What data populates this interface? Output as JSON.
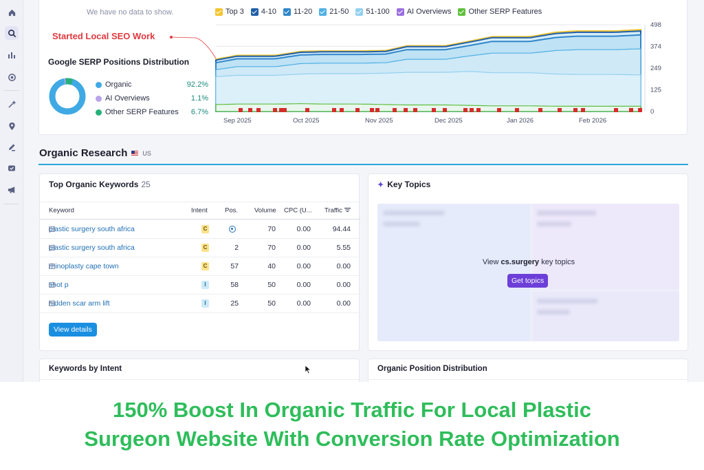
{
  "sidebar": {
    "icons": [
      "home-icon",
      "seo-icon",
      "bar-chart-icon",
      "target-icon",
      "sparkle-icon",
      "location-pin-icon",
      "edit-icon",
      "shield-icon",
      "megaphone-icon"
    ]
  },
  "top_panel": {
    "no_data_text": "We have no data to show.",
    "legend": [
      {
        "label": "Top 3",
        "color": "#f3c531"
      },
      {
        "label": "4-10",
        "color": "#1f5fa8"
      },
      {
        "label": "11-20",
        "color": "#2f86c9"
      },
      {
        "label": "21-50",
        "color": "#4fb0e3"
      },
      {
        "label": "51-100",
        "color": "#93d0f0"
      },
      {
        "label": "AI Overviews",
        "color": "#9b6fe0"
      },
      {
        "label": "Other SERP Features",
        "color": "#5fbf3c"
      }
    ],
    "annotation": "Started  Local SEO Work",
    "serp_title": "Google SERP Positions Distribution",
    "serp_items": [
      {
        "label": "Organic",
        "value": "92.2%",
        "color": "#3fa9e4"
      },
      {
        "label": "AI Overviews",
        "value": "1.1%",
        "color": "#b9a4ea"
      },
      {
        "label": "Other SERP Features",
        "value": "6.7%",
        "color": "#27b07a"
      }
    ]
  },
  "chart_data": {
    "type": "area",
    "x": [
      "Sep 2025",
      "Oct 2025",
      "Nov 2025",
      "Dec 2025",
      "Jan 2026",
      "Feb 2026"
    ],
    "yticks": [
      0,
      125,
      249,
      374,
      498
    ],
    "ylim": [
      0,
      498
    ],
    "series": [
      {
        "name": "Top 3",
        "values": [
          300,
          345,
          350,
          405,
          455,
          470
        ]
      },
      {
        "name": "4-10",
        "values": [
          295,
          340,
          345,
          400,
          448,
          462
        ]
      },
      {
        "name": "11-20",
        "values": [
          280,
          325,
          330,
          380,
          425,
          440
        ]
      },
      {
        "name": "21-50",
        "values": [
          240,
          275,
          280,
          320,
          350,
          360
        ]
      },
      {
        "name": "51-100",
        "values": [
          200,
          215,
          220,
          230,
          215,
          210
        ]
      },
      {
        "name": "Other SERP Features",
        "values": [
          40,
          45,
          40,
          35,
          30,
          30
        ]
      }
    ],
    "grid": true
  },
  "organic_research": {
    "title": "Organic Research",
    "region": "US"
  },
  "keywords": {
    "title": "Top Organic Keywords",
    "count": "25",
    "columns": [
      "Keyword",
      "Intent",
      "Pos.",
      "Volume",
      "CPC (U...",
      "Traffic"
    ],
    "rows": [
      {
        "keyword": "plastic surgery south africa",
        "intent": "C",
        "pos": "",
        "pos_icon": "location-pin-icon",
        "volume": "70",
        "cpc": "0.00",
        "traffic": "94.44"
      },
      {
        "keyword": "plastic surgery south africa",
        "intent": "C",
        "pos": "2",
        "volume": "70",
        "cpc": "0.00",
        "traffic": "5.55"
      },
      {
        "keyword": "rhinoplasty cape town",
        "intent": "C",
        "pos": "57",
        "volume": "40",
        "cpc": "0.00",
        "traffic": "0.00"
      },
      {
        "keyword": "shot p",
        "intent": "I",
        "pos": "58",
        "volume": "50",
        "cpc": "0.00",
        "traffic": "0.00"
      },
      {
        "keyword": "hidden scar arm lift",
        "intent": "I",
        "pos": "25",
        "volume": "50",
        "cpc": "0.00",
        "traffic": "0.00"
      }
    ],
    "view_details": "View details"
  },
  "key_topics": {
    "title": "Key Topics",
    "view_prefix": "View ",
    "domain": "cs.surgery",
    "view_suffix": " key topics",
    "button": "Get topics"
  },
  "bottom_cards": {
    "intent_title": "Keywords by Intent",
    "position_title": "Organic Position Distribution"
  },
  "banner": {
    "line1": "150% Boost In Organic Traffic For Local Plastic",
    "line2": "Surgeon Website With Conversion Rate Optimization",
    "color": "#2fbd5b"
  }
}
